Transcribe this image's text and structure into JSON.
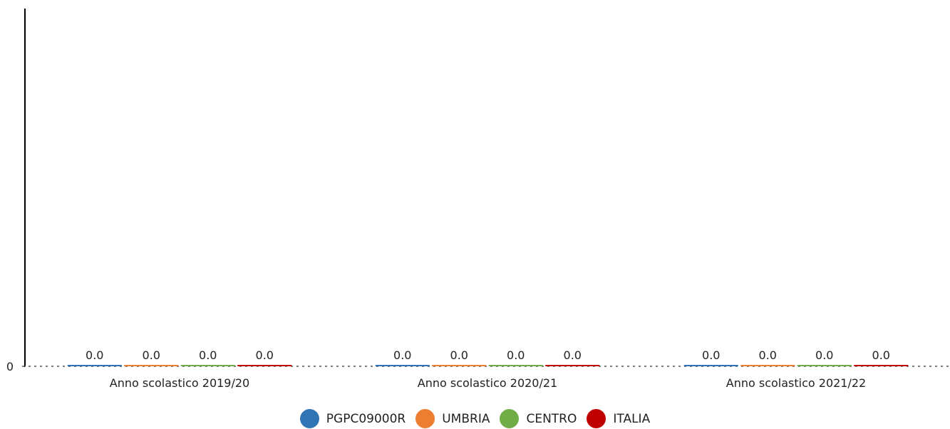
{
  "chart_data": {
    "type": "bar",
    "categories": [
      "Anno scolastico 2019/20",
      "Anno scolastico 2020/21",
      "Anno scolastico 2021/22"
    ],
    "series": [
      {
        "name": "PGPC09000R",
        "color": "#2f75b5",
        "values": [
          0.0,
          0.0,
          0.0
        ],
        "labels": [
          "0.0",
          "0.0",
          "0.0"
        ]
      },
      {
        "name": "UMBRIA",
        "color": "#ed7d31",
        "values": [
          0.0,
          0.0,
          0.0
        ],
        "labels": [
          "0.0",
          "0.0",
          "0.0"
        ]
      },
      {
        "name": "CENTRO",
        "color": "#70ad47",
        "values": [
          0.0,
          0.0,
          0.0
        ],
        "labels": [
          "0.0",
          "0.0",
          "0.0"
        ]
      },
      {
        "name": "ITALIA",
        "color": "#c00000",
        "values": [
          0.0,
          0.0,
          0.0
        ],
        "labels": [
          "0.0",
          "0.0",
          "0.0"
        ]
      }
    ],
    "y_ticks": [
      "0"
    ],
    "ylim": [
      0,
      1
    ],
    "title": "",
    "xlabel": "",
    "ylabel": "",
    "grid": false,
    "legend_position": "bottom"
  }
}
